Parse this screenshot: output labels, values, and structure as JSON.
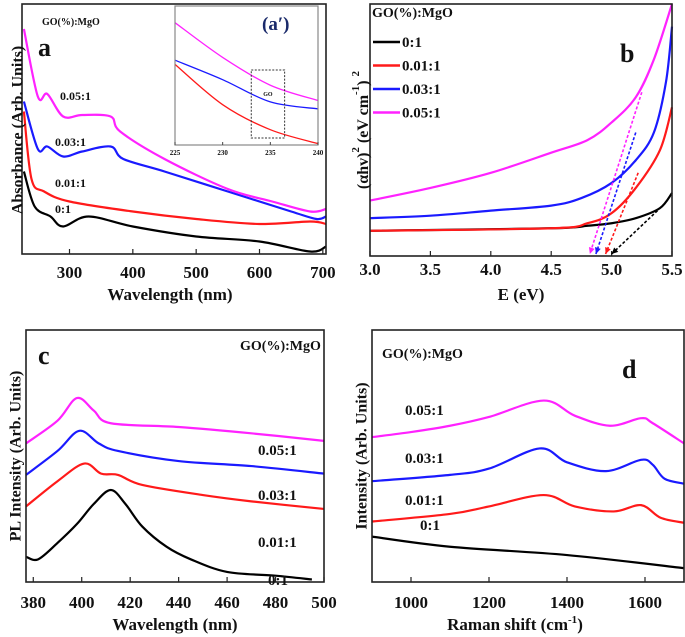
{
  "colors": {
    "0:1": "#000000",
    "0.01:1": "#ff1a1a",
    "0.03:1": "#1a1aff",
    "0.05:1": "#ff22ff",
    "inset_label": "#1a2a6a"
  },
  "chart_data": [
    {
      "id": "a",
      "type": "line",
      "panel_label": "a",
      "legend_title": "GO(%):MgO",
      "xlabel": "Wavelength (nm)",
      "ylabel": "Absorbance (Arb. Units)",
      "xlim": [
        225,
        705
      ],
      "ylim": [
        0,
        1
      ],
      "xticks": [
        300,
        400,
        500,
        600,
        700
      ],
      "y_ticks_shown": false,
      "series": [
        {
          "name": "0:1",
          "x": [
            228,
            245,
            270,
            290,
            330,
            400,
            500,
            600,
            680,
            705
          ],
          "y": [
            0.33,
            0.19,
            0.15,
            0.11,
            0.15,
            0.11,
            0.07,
            0.05,
            0.01,
            0.03
          ]
        },
        {
          "name": "0.01:1",
          "x": [
            228,
            240,
            260,
            300,
            400,
            500,
            600,
            680,
            705
          ],
          "y": [
            0.57,
            0.3,
            0.25,
            0.21,
            0.17,
            0.14,
            0.12,
            0.13,
            0.12
          ]
        },
        {
          "name": "0.03:1",
          "x": [
            228,
            250,
            265,
            290,
            320,
            365,
            385,
            450,
            550,
            650,
            690,
            705
          ],
          "y": [
            0.61,
            0.42,
            0.43,
            0.39,
            0.41,
            0.43,
            0.38,
            0.33,
            0.25,
            0.17,
            0.14,
            0.15
          ]
        },
        {
          "name": "0.05:1",
          "x": [
            228,
            250,
            265,
            290,
            320,
            365,
            380,
            450,
            550,
            620,
            680,
            705
          ],
          "y": [
            0.9,
            0.63,
            0.64,
            0.55,
            0.556,
            0.55,
            0.49,
            0.38,
            0.26,
            0.21,
            0.17,
            0.18
          ]
        }
      ]
    },
    {
      "id": "a_inset",
      "type": "line",
      "panel_label": "(a′)",
      "annotation": "GO",
      "xlim": [
        225,
        240
      ],
      "ylim": [
        0,
        1
      ],
      "xticks": [
        225,
        230,
        235,
        240
      ],
      "highlight_box_x": [
        233,
        236.5
      ],
      "series": [
        {
          "name": "0.01:1",
          "x": [
            225,
            230,
            235,
            240
          ],
          "y": [
            0.58,
            0.29,
            0.11,
            0.01
          ]
        },
        {
          "name": "0.03:1",
          "x": [
            225,
            230,
            235,
            240
          ],
          "y": [
            0.61,
            0.47,
            0.31,
            0.26
          ]
        },
        {
          "name": "0.05:1",
          "x": [
            225,
            230,
            235,
            240
          ],
          "y": [
            0.88,
            0.63,
            0.43,
            0.32
          ]
        }
      ]
    },
    {
      "id": "b",
      "type": "line",
      "panel_label": "b",
      "legend_title": "GO(%):MgO",
      "legend": "top-left",
      "xlabel": "E (eV)",
      "ylabel": "(αhv)2 (eV cm-1) 2",
      "xlim": [
        3.0,
        5.5
      ],
      "ylim": [
        0,
        1
      ],
      "xticks": [
        "3.0",
        "3.5",
        "4.0",
        "4.5",
        "5.0",
        "5.5"
      ],
      "y_ticks_shown": false,
      "series": [
        {
          "name": "0:1",
          "x": [
            3.0,
            4.5,
            4.8,
            5.0,
            5.2,
            5.4,
            5.5
          ],
          "y": [
            0.1,
            0.11,
            0.12,
            0.13,
            0.15,
            0.19,
            0.25
          ],
          "band_gap_eV": 5.0
        },
        {
          "name": "0.01:1",
          "x": [
            3.0,
            4.5,
            4.8,
            5.0,
            5.2,
            5.4,
            5.5
          ],
          "y": [
            0.1,
            0.11,
            0.13,
            0.17,
            0.27,
            0.42,
            0.59
          ],
          "band_gap_eV": 4.95
        },
        {
          "name": "0.03:1",
          "x": [
            3.0,
            3.5,
            4.0,
            4.5,
            4.75,
            5.0,
            5.2,
            5.35,
            5.45,
            5.5
          ],
          "y": [
            0.15,
            0.16,
            0.18,
            0.2,
            0.23,
            0.29,
            0.38,
            0.49,
            0.69,
            0.91
          ],
          "band_gap_eV": 4.87
        },
        {
          "name": "0.05:1",
          "x": [
            3.0,
            3.5,
            4.0,
            4.5,
            4.8,
            5.0,
            5.2,
            5.35,
            5.5
          ],
          "y": [
            0.22,
            0.27,
            0.33,
            0.41,
            0.46,
            0.53,
            0.63,
            0.78,
            1.0
          ],
          "band_gap_eV": 4.82
        }
      ]
    },
    {
      "id": "c",
      "type": "line",
      "panel_label": "c",
      "legend_title": "GO(%):MgO",
      "xlabel": "Wavelength (nm)",
      "ylabel": "PL Intensity (Arb. Units)",
      "xlim": [
        377,
        500
      ],
      "ylim": [
        0,
        1
      ],
      "xticks": [
        380,
        400,
        420,
        440,
        460,
        480,
        500
      ],
      "y_ticks_shown": false,
      "series": [
        {
          "name": "0:1",
          "x": [
            377,
            382,
            390,
            398,
            405,
            412,
            418,
            425,
            435,
            445,
            460,
            480,
            495
          ],
          "y": [
            0.1,
            0.09,
            0.155,
            0.23,
            0.31,
            0.365,
            0.31,
            0.22,
            0.14,
            0.09,
            0.04,
            0.025,
            0.01
          ]
        },
        {
          "name": "0.01:1",
          "x": [
            377,
            390,
            401,
            408,
            415,
            425,
            450,
            470,
            500
          ],
          "y": [
            0.3,
            0.4,
            0.47,
            0.43,
            0.425,
            0.385,
            0.345,
            0.32,
            0.29
          ]
        },
        {
          "name": "0.03:1",
          "x": [
            377,
            390,
            399,
            407,
            415,
            440,
            470,
            500
          ],
          "y": [
            0.425,
            0.52,
            0.6,
            0.55,
            0.52,
            0.48,
            0.46,
            0.43
          ]
        },
        {
          "name": "0.05:1",
          "x": [
            377,
            390,
            398,
            405,
            412,
            440,
            470,
            500
          ],
          "y": [
            0.55,
            0.64,
            0.73,
            0.68,
            0.63,
            0.615,
            0.59,
            0.56
          ]
        }
      ]
    },
    {
      "id": "d",
      "type": "line",
      "panel_label": "d",
      "legend_title": "GO(%):MgO",
      "xlabel": "Raman shift (cm-1)",
      "ylabel": "Intensity (Arb. Units)",
      "xlim": [
        900,
        1700
      ],
      "ylim": [
        0,
        1
      ],
      "xticks": [
        1000,
        1200,
        1400,
        1600
      ],
      "y_ticks_shown": false,
      "series": [
        {
          "name": "0:1",
          "x": [
            900,
            1100,
            1400,
            1700
          ],
          "y": [
            0.18,
            0.14,
            0.107,
            0.055
          ]
        },
        {
          "name": "0.01:1",
          "x": [
            900,
            1100,
            1200,
            1340,
            1420,
            1520,
            1590,
            1640,
            1700
          ],
          "y": [
            0.24,
            0.27,
            0.3,
            0.345,
            0.3,
            0.28,
            0.305,
            0.255,
            0.235
          ]
        },
        {
          "name": "0.03:1",
          "x": [
            900,
            1100,
            1200,
            1330,
            1400,
            1500,
            1590,
            1620,
            1650,
            1700
          ],
          "y": [
            0.4,
            0.425,
            0.45,
            0.53,
            0.475,
            0.44,
            0.485,
            0.465,
            0.41,
            0.39
          ]
        },
        {
          "name": "0.05:1",
          "x": [
            900,
            1000,
            1100,
            1200,
            1340,
            1420,
            1510,
            1590,
            1620,
            1700
          ],
          "y": [
            0.575,
            0.595,
            0.62,
            0.655,
            0.72,
            0.66,
            0.62,
            0.65,
            0.63,
            0.55
          ]
        }
      ]
    }
  ]
}
